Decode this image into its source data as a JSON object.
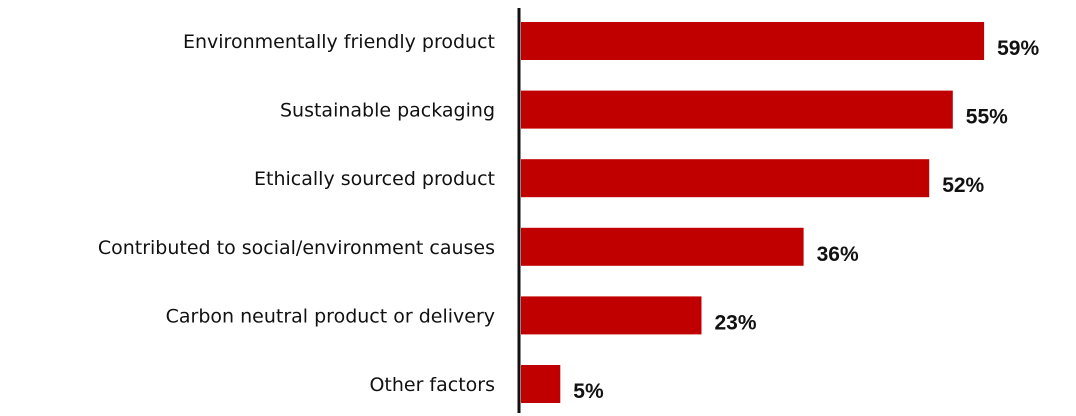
{
  "chart_data": {
    "type": "bar",
    "orientation": "horizontal",
    "categories": [
      "Environmentally friendly product",
      "Sustainable packaging",
      "Ethically sourced product",
      "Contributed to social/environment causes",
      "Carbon neutral product or delivery",
      "Other factors"
    ],
    "values": [
      59,
      55,
      52,
      36,
      23,
      5
    ],
    "value_labels": [
      "59%",
      "55%",
      "52%",
      "36%",
      "23%",
      "5%"
    ],
    "unit": "%",
    "xlim": [
      0,
      62
    ],
    "grid": false,
    "legend": "none",
    "colors": {
      "bar": "#c00000",
      "axis": "#111111",
      "text": "#111111"
    }
  }
}
